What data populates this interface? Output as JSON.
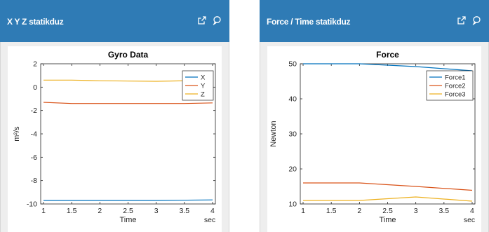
{
  "panels": [
    {
      "title": "X Y Z statikduz",
      "icons": [
        "external-link-icon",
        "comment-icon"
      ],
      "chart_data": {
        "type": "line",
        "title": "Gyro Data",
        "xlabel": "Time",
        "ylabel": "m²/s",
        "x_unit": "sec",
        "xlim": [
          0.95,
          4.05
        ],
        "ylim": [
          -10,
          2
        ],
        "xticks": [
          1,
          1.5,
          2,
          2.5,
          3,
          3.5,
          4
        ],
        "xtick_labels": [
          "1",
          "1.5",
          "2",
          "2.5",
          "3",
          "3.5",
          "4"
        ],
        "yticks": [
          -10,
          -8,
          -6,
          -4,
          -2,
          0,
          2
        ],
        "ytick_labels": [
          "-10",
          "-8",
          "-6",
          "-4",
          "-2",
          "0",
          "2"
        ],
        "grid": false,
        "legend": "top-right",
        "series": [
          {
            "name": "X",
            "color": "#0072bd",
            "x": [
              1,
              2,
              3,
              4
            ],
            "y": [
              -9.7,
              -9.7,
              -9.7,
              -9.65
            ]
          },
          {
            "name": "Y",
            "color": "#d95319",
            "x": [
              1,
              1.5,
              2,
              3,
              3.5,
              4
            ],
            "y": [
              -1.3,
              -1.4,
              -1.4,
              -1.4,
              -1.4,
              -1.35
            ]
          },
          {
            "name": "Z",
            "color": "#edb120",
            "x": [
              1,
              1.5,
              2,
              3,
              3.5,
              4
            ],
            "y": [
              0.6,
              0.6,
              0.55,
              0.5,
              0.55,
              0.6
            ]
          }
        ]
      }
    },
    {
      "title": "Force / Time statikduz",
      "icons": [
        "external-link-icon",
        "comment-icon"
      ],
      "chart_data": {
        "type": "line",
        "title": "Force",
        "xlabel": "Time",
        "ylabel": "Newton",
        "x_unit": "sec",
        "xlim": [
          0.95,
          4.05
        ],
        "ylim": [
          10,
          50
        ],
        "xticks": [
          1,
          1.5,
          2,
          2.5,
          3,
          3.5,
          4
        ],
        "xtick_labels": [
          "1",
          "1.5",
          "2",
          "2.5",
          "3",
          "3.5",
          "4"
        ],
        "yticks": [
          10,
          20,
          30,
          40,
          50
        ],
        "ytick_labels": [
          "10",
          "20",
          "30",
          "40",
          "50"
        ],
        "grid": false,
        "legend": "top-right",
        "series": [
          {
            "name": "Force1",
            "color": "#0072bd",
            "x": [
              1,
              2,
              3,
              4
            ],
            "y": [
              50,
              50,
              49.2,
              48
            ]
          },
          {
            "name": "Force2",
            "color": "#d95319",
            "x": [
              1,
              2,
              3,
              4
            ],
            "y": [
              16,
              16,
              15,
              13.9
            ]
          },
          {
            "name": "Force3",
            "color": "#edb120",
            "x": [
              1,
              2,
              3,
              4
            ],
            "y": [
              11,
              11,
              12,
              10.8
            ]
          }
        ]
      }
    }
  ]
}
